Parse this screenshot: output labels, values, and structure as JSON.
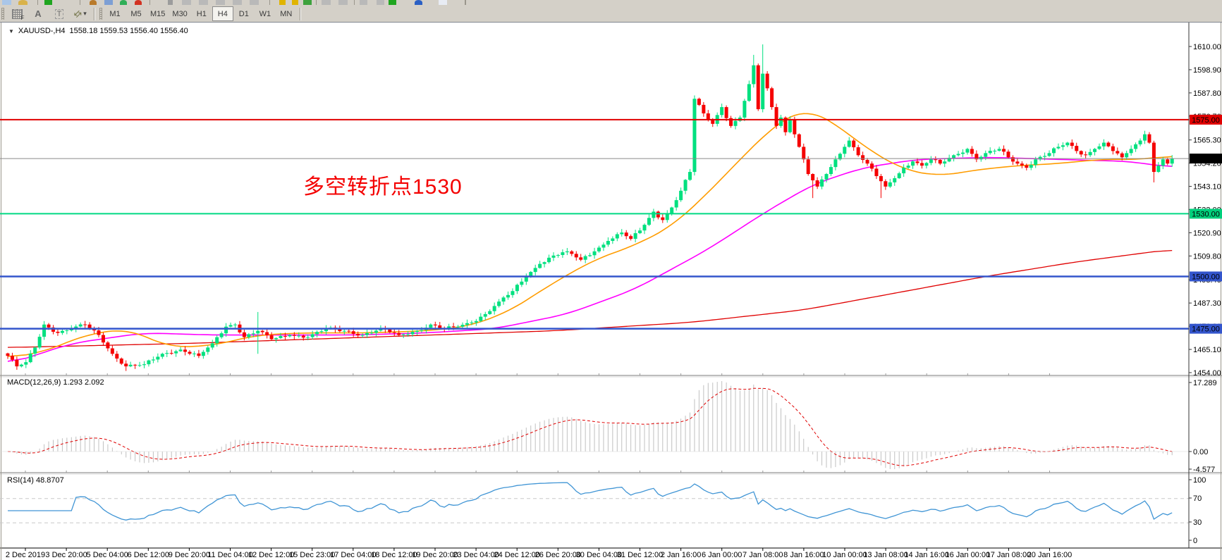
{
  "toolbar_top": {
    "fragments": [
      {
        "name": "new-chart-icon",
        "x": 3,
        "w": 13,
        "color": "#aac6e8"
      },
      {
        "name": "zoom-icon",
        "x": 26,
        "w": 13,
        "color": "#d9b24a",
        "shape": "circle"
      },
      {
        "name": "separator",
        "x": 53,
        "w": 1,
        "color": "#9a968c",
        "h": 8
      },
      {
        "name": "new-order-icon",
        "x": 63,
        "w": 11,
        "color": "#1fa51f"
      },
      {
        "name": "separator",
        "x": 113,
        "w": 1,
        "color": "#9a968c",
        "h": 8
      },
      {
        "name": "alert-icon",
        "x": 127,
        "w": 10,
        "color": "#b97a2a",
        "shape": "circle"
      },
      {
        "name": "news-icon",
        "x": 148,
        "w": 12,
        "color": "#7d9fd4"
      },
      {
        "name": "autotrade-icon",
        "x": 170,
        "w": 10,
        "color": "#2fae57",
        "shape": "circle"
      },
      {
        "name": "stop-icon",
        "x": 191,
        "w": 10,
        "color": "#d23222",
        "shape": "circle"
      },
      {
        "name": "separator",
        "x": 212,
        "w": 1,
        "color": "#9a968c",
        "h": 8
      },
      {
        "name": "equal-icon",
        "x": 238,
        "w": 7,
        "color": "#9c9c9c"
      },
      {
        "name": "window-bar-icon",
        "x": 258,
        "w": 13,
        "color": "#b9b9b9"
      },
      {
        "name": "window-bar-icon",
        "x": 282,
        "w": 13,
        "color": "#b9b9b9"
      },
      {
        "name": "window-bar-icon",
        "x": 306,
        "w": 13,
        "color": "#b9b9b9"
      },
      {
        "name": "window-bar-icon",
        "x": 330,
        "w": 13,
        "color": "#b9b9b9"
      },
      {
        "name": "window-bar-icon",
        "x": 354,
        "w": 13,
        "color": "#b9b9b9"
      },
      {
        "name": "separator",
        "x": 382,
        "w": 1,
        "color": "#9a968c",
        "h": 8
      },
      {
        "name": "funnel-icon",
        "x": 396,
        "w": 9,
        "color": "#e0b400"
      },
      {
        "name": "funnel-icon",
        "x": 414,
        "w": 9,
        "color": "#e0b400"
      },
      {
        "name": "data-window-icon",
        "x": 430,
        "w": 12,
        "color": "#3da23d"
      },
      {
        "name": "separator",
        "x": 448,
        "w": 1,
        "color": "#9a968c",
        "h": 8
      },
      {
        "name": "window-bar-icon",
        "x": 456,
        "w": 13,
        "color": "#b9b9b9"
      },
      {
        "name": "window-bar-icon",
        "x": 480,
        "w": 13,
        "color": "#b9b9b9"
      },
      {
        "name": "separator",
        "x": 502,
        "w": 1,
        "color": "#9a968c",
        "h": 8
      },
      {
        "name": "cursor-icon",
        "x": 510,
        "w": 11,
        "color": "#b9b9b9"
      },
      {
        "name": "crosshair-icon",
        "x": 534,
        "w": 11,
        "color": "#b9b9b9"
      },
      {
        "name": "buy-icon",
        "x": 551,
        "w": 11,
        "color": "#1fa51f"
      },
      {
        "name": "globe-icon",
        "x": 588,
        "w": 11,
        "color": "#2a5fc4",
        "shape": "circle"
      },
      {
        "name": "doc-icon",
        "x": 622,
        "w": 12,
        "color": "#e8ecf4"
      },
      {
        "name": "panel-edge",
        "x": 659,
        "w": 2,
        "color": "#9a968c",
        "h": 9
      }
    ]
  },
  "toolbar": {
    "icon_glyphs": {
      "grid_sub": "F",
      "letter_a": "A",
      "letter_t": "T",
      "arrows": "⇆",
      "caret": "▾"
    },
    "timeframes": [
      "M1",
      "M5",
      "M15",
      "M30",
      "H1",
      "H4",
      "D1",
      "W1",
      "MN"
    ],
    "active_timeframe": "H4"
  },
  "chart_header": {
    "collapse_icon": "▼",
    "symbol": "XAUUSD-,H4",
    "ohlc": "1558.18 1559.53 1556.40 1556.40"
  },
  "annotation": {
    "text": "多空转折点1530",
    "color": "#f40000"
  },
  "macd_panel": {
    "label": "MACD(12,26,9) 1.293 2.092",
    "axis_labels": [
      "17.289",
      "0.00",
      "-4.577"
    ]
  },
  "rsi_panel": {
    "label": "RSI(14) 48.8707",
    "axis_labels": [
      "100",
      "70",
      "30",
      "0"
    ]
  },
  "price_axis": {
    "ticks": [
      1610.0,
      1598.9,
      1587.8,
      1576.7,
      1565.3,
      1554.2,
      1543.1,
      1532.0,
      1520.9,
      1509.8,
      1498.4,
      1487.3,
      1476.2,
      1465.1,
      1454.0
    ],
    "badges": [
      {
        "label": "1575.00",
        "price": 1575.0,
        "bg": "#e00000",
        "fg": "#ffffff"
      },
      {
        "label": "1556.40",
        "price": 1556.4,
        "bg": "#000000",
        "fg": "#ffffff"
      },
      {
        "label": "1530.00",
        "price": 1530.0,
        "bg": "#00cf7c",
        "fg": "#ffffff"
      },
      {
        "label": "1500.00",
        "price": 1500.0,
        "bg": "#3355cc",
        "fg": "#ffffff"
      },
      {
        "label": "1475.00",
        "price": 1475.0,
        "bg": "#3355cc",
        "fg": "#ffffff"
      }
    ]
  },
  "time_axis": {
    "labels": [
      "2 Dec 2019",
      "3 Dec 20:00",
      "5 Dec 04:00",
      "6 Dec 12:00",
      "9 Dec 20:00",
      "11 Dec 04:00",
      "12 Dec 12:00",
      "15 Dec 23:00",
      "17 Dec 04:00",
      "18 Dec 12:00",
      "19 Dec 20:00",
      "23 Dec 04:00",
      "24 Dec 12:00",
      "26 Dec 20:00",
      "30 Dec 04:00",
      "31 Dec 12:00",
      "2 Jan 16:00",
      "6 Jan 00:00",
      "7 Jan 08:00",
      "8 Jan 16:00",
      "10 Jan 00:00",
      "13 Jan 08:00",
      "14 Jan 16:00",
      "16 Jan 00:00",
      "17 Jan 08:00",
      "20 Jan 16:00"
    ]
  },
  "chart_data": {
    "type": "candlestick",
    "symbol": "XAUUSD-",
    "timeframe": "H4",
    "x_domain": [
      "2 Dec 2019",
      "21 Jan 2020"
    ],
    "y_range": [
      1454.0,
      1616.0
    ],
    "n_candles": 257,
    "current_price": 1556.4,
    "ohlc_display": {
      "open": 1558.18,
      "high": 1559.53,
      "low": 1556.4,
      "close": 1556.4
    },
    "close_anchors": [
      [
        0,
        1462
      ],
      [
        2,
        1457
      ],
      [
        4,
        1459
      ],
      [
        6,
        1466
      ],
      [
        8,
        1477
      ],
      [
        11,
        1473
      ],
      [
        14,
        1475
      ],
      [
        17,
        1477
      ],
      [
        20,
        1472
      ],
      [
        23,
        1463
      ],
      [
        26,
        1457
      ],
      [
        30,
        1458
      ],
      [
        34,
        1463
      ],
      [
        38,
        1465
      ],
      [
        42,
        1462
      ],
      [
        45,
        1468
      ],
      [
        48,
        1476
      ],
      [
        50,
        1477
      ],
      [
        52,
        1471
      ],
      [
        55,
        1474
      ],
      [
        58,
        1470
      ],
      [
        62,
        1472
      ],
      [
        66,
        1471
      ],
      [
        70,
        1475
      ],
      [
        74,
        1474
      ],
      [
        78,
        1472
      ],
      [
        82,
        1475
      ],
      [
        86,
        1472
      ],
      [
        90,
        1474
      ],
      [
        93,
        1477
      ],
      [
        96,
        1475
      ],
      [
        99,
        1476
      ],
      [
        102,
        1478
      ],
      [
        105,
        1482
      ],
      [
        108,
        1488
      ],
      [
        111,
        1493
      ],
      [
        114,
        1500
      ],
      [
        117,
        1506
      ],
      [
        120,
        1510
      ],
      [
        123,
        1512
      ],
      [
        126,
        1508
      ],
      [
        129,
        1512
      ],
      [
        132,
        1517
      ],
      [
        135,
        1521
      ],
      [
        137,
        1518
      ],
      [
        139,
        1522
      ],
      [
        141,
        1528
      ],
      [
        142,
        1531
      ],
      [
        144,
        1527
      ],
      [
        146,
        1533
      ],
      [
        148,
        1541
      ],
      [
        150,
        1550
      ],
      [
        151,
        1585
      ],
      [
        153,
        1578
      ],
      [
        155,
        1573
      ],
      [
        157,
        1581
      ],
      [
        159,
        1572
      ],
      [
        161,
        1576
      ],
      [
        162,
        1584
      ],
      [
        163,
        1592
      ],
      [
        164,
        1601
      ],
      [
        165,
        1580
      ],
      [
        166,
        1597
      ],
      [
        167,
        1590
      ],
      [
        168,
        1581
      ],
      [
        169,
        1572
      ],
      [
        170,
        1576
      ],
      [
        171,
        1569
      ],
      [
        172,
        1575
      ],
      [
        173,
        1568
      ],
      [
        174,
        1562
      ],
      [
        175,
        1556
      ],
      [
        176,
        1549
      ],
      [
        178,
        1543
      ],
      [
        180,
        1549
      ],
      [
        182,
        1556
      ],
      [
        184,
        1562
      ],
      [
        185,
        1565
      ],
      [
        187,
        1558
      ],
      [
        189,
        1554
      ],
      [
        191,
        1548
      ],
      [
        193,
        1543
      ],
      [
        195,
        1547
      ],
      [
        197,
        1552
      ],
      [
        199,
        1555
      ],
      [
        201,
        1553
      ],
      [
        203,
        1556
      ],
      [
        205,
        1554
      ],
      [
        208,
        1558
      ],
      [
        211,
        1561
      ],
      [
        213,
        1556
      ],
      [
        215,
        1559
      ],
      [
        218,
        1561
      ],
      [
        220,
        1557
      ],
      [
        222,
        1554
      ],
      [
        224,
        1552
      ],
      [
        226,
        1556
      ],
      [
        229,
        1559
      ],
      [
        231,
        1562
      ],
      [
        233,
        1564
      ],
      [
        235,
        1560
      ],
      [
        237,
        1558
      ],
      [
        239,
        1561
      ],
      [
        241,
        1564
      ],
      [
        243,
        1560
      ],
      [
        245,
        1557
      ],
      [
        247,
        1561
      ],
      [
        249,
        1565
      ],
      [
        250,
        1568
      ],
      [
        251,
        1564
      ],
      [
        252,
        1550
      ],
      [
        253,
        1553
      ],
      [
        254,
        1556
      ],
      [
        255,
        1554
      ],
      [
        256,
        1556.4
      ]
    ],
    "wick_overrides": {
      "26": {
        "lo": 1454.8
      },
      "55": {
        "hi": 1483,
        "lo": 1463
      },
      "164": {
        "hi": 1606
      },
      "166": {
        "hi": 1611
      },
      "177": {
        "lo": 1537.5
      },
      "192": {
        "lo": 1537.5
      },
      "252": {
        "lo": 1545
      }
    },
    "ma_orange_anchors": [
      [
        0,
        1461
      ],
      [
        8,
        1464
      ],
      [
        17,
        1472
      ],
      [
        26,
        1475
      ],
      [
        36,
        1466
      ],
      [
        45,
        1467
      ],
      [
        55,
        1472
      ],
      [
        65,
        1473
      ],
      [
        79,
        1473
      ],
      [
        92,
        1474
      ],
      [
        101,
        1476
      ],
      [
        110,
        1483
      ],
      [
        120,
        1497
      ],
      [
        129,
        1508
      ],
      [
        138,
        1515
      ],
      [
        146,
        1524
      ],
      [
        154,
        1540
      ],
      [
        161,
        1556
      ],
      [
        168,
        1571
      ],
      [
        172,
        1577
      ],
      [
        176,
        1580
      ],
      [
        182,
        1573
      ],
      [
        189,
        1561
      ],
      [
        197,
        1551
      ],
      [
        205,
        1548
      ],
      [
        213,
        1551
      ],
      [
        222,
        1553
      ],
      [
        231,
        1554
      ],
      [
        240,
        1556
      ],
      [
        250,
        1556
      ],
      [
        256,
        1558
      ]
    ],
    "ma_magenta_anchors": [
      [
        0,
        1458
      ],
      [
        14,
        1468
      ],
      [
        30,
        1473
      ],
      [
        45,
        1472
      ],
      [
        60,
        1472
      ],
      [
        76,
        1472
      ],
      [
        92,
        1473
      ],
      [
        107,
        1475
      ],
      [
        123,
        1482
      ],
      [
        138,
        1494
      ],
      [
        143,
        1500
      ],
      [
        154,
        1513
      ],
      [
        166,
        1530
      ],
      [
        177,
        1544
      ],
      [
        188,
        1552
      ],
      [
        200,
        1556
      ],
      [
        216,
        1557
      ],
      [
        231,
        1556
      ],
      [
        247,
        1555
      ],
      [
        256,
        1552
      ]
    ],
    "ma_red_anchors": [
      [
        0,
        1466
      ],
      [
        40,
        1468
      ],
      [
        80,
        1471
      ],
      [
        120,
        1474
      ],
      [
        150,
        1478
      ],
      [
        175,
        1484
      ],
      [
        195,
        1492
      ],
      [
        215,
        1500
      ],
      [
        235,
        1507
      ],
      [
        256,
        1513
      ]
    ],
    "hlines": [
      {
        "price": 1575.0,
        "color": "#e00000",
        "width": 2
      },
      {
        "price": 1530.0,
        "color": "#00d984",
        "width": 2
      },
      {
        "price": 1500.0,
        "color": "#3355cc",
        "width": 2.5
      },
      {
        "price": 1475.0,
        "color": "#3355cc",
        "width": 2.5
      }
    ],
    "colors": {
      "up": "#00e07f",
      "down": "#f50000",
      "ma_fast": "#ff9c00",
      "ma_mid": "#ff00ff",
      "ma_slow": "#e00000",
      "current_line": "#8a8a8a",
      "macd_hist": "#c0c0c0",
      "macd_signal": "#e00000",
      "rsi_line": "#4095d5",
      "rsi_levels": "#c8c8c8"
    },
    "indicators": {
      "macd": {
        "fast": 12,
        "slow": 26,
        "signal": 9,
        "current_main": 1.293,
        "current_signal": 2.092,
        "axis_max": 17.289,
        "axis_min": -4.577
      },
      "rsi": {
        "period": 14,
        "current": 48.8707,
        "levels": [
          30,
          70
        ],
        "range": [
          0,
          100
        ]
      }
    }
  }
}
